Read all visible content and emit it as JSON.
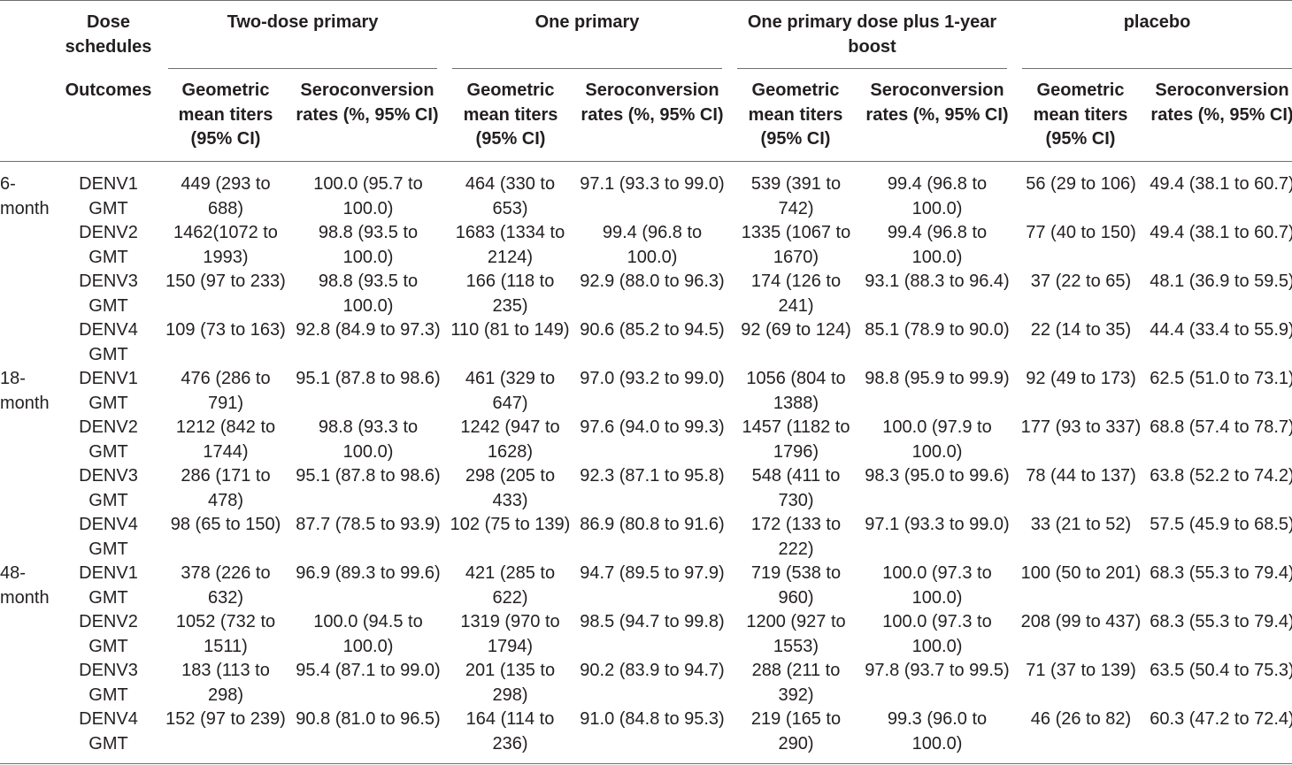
{
  "header": {
    "dose_schedules": "Dose schedules",
    "outcomes": "Outcomes",
    "groups": [
      "Two-dose primary",
      "One primary",
      "One primary dose plus 1-year boost",
      "placebo"
    ],
    "gmt_label": "Geometric mean titers (95% CI)",
    "sc_label": "Seroconversion rates (%, 95% CI)"
  },
  "sections": [
    {
      "label": "6-month",
      "rows": [
        {
          "outcome": "DENV1 GMT",
          "values": [
            "449 (293 to 688)",
            "100.0 (95.7 to 100.0)",
            "464 (330 to 653)",
            "97.1 (93.3 to 99.0)",
            "539 (391 to 742)",
            "99.4 (96.8 to 100.0)",
            "56 (29 to 106)",
            "49.4 (38.1 to 60.7)"
          ]
        },
        {
          "outcome": "DENV2 GMT",
          "values": [
            "1462(1072 to 1993)",
            "98.8 (93.5 to 100.0)",
            "1683 (1334 to 2124)",
            "99.4 (96.8 to 100.0)",
            "1335 (1067 to 1670)",
            "99.4 (96.8 to 100.0)",
            "77 (40 to 150)",
            "49.4 (38.1 to 60.7)"
          ]
        },
        {
          "outcome": "DENV3 GMT",
          "values": [
            "150 (97 to 233)",
            "98.8 (93.5 to 100.0)",
            "166 (118 to 235)",
            "92.9 (88.0 to 96.3)",
            "174 (126 to 241)",
            "93.1 (88.3 to 96.4)",
            "37 (22 to 65)",
            "48.1 (36.9 to 59.5)"
          ]
        },
        {
          "outcome": "DENV4 GMT",
          "values": [
            "109 (73 to 163)",
            "92.8 (84.9 to 97.3)",
            "110 (81 to 149)",
            "90.6 (85.2 to 94.5)",
            "92 (69 to 124)",
            "85.1 (78.9 to 90.0)",
            "22 (14 to 35)",
            "44.4 (33.4 to 55.9)"
          ]
        }
      ]
    },
    {
      "label": "18-month",
      "rows": [
        {
          "outcome": "DENV1 GMT",
          "values": [
            "476 (286 to 791)",
            "95.1 (87.8 to 98.6)",
            "461 (329 to 647)",
            "97.0 (93.2 to 99.0)",
            "1056 (804 to 1388)",
            "98.8 (95.9 to 99.9)",
            "92 (49 to 173)",
            "62.5 (51.0 to 73.1)"
          ]
        },
        {
          "outcome": "DENV2 GMT",
          "values": [
            "1212 (842 to 1744)",
            "98.8 (93.3 to 100.0)",
            "1242 (947 to 1628)",
            "97.6 (94.0 to 99.3)",
            "1457 (1182 to 1796)",
            "100.0 (97.9 to 100.0)",
            "177 (93 to 337)",
            "68.8 (57.4 to 78.7)"
          ]
        },
        {
          "outcome": "DENV3 GMT",
          "values": [
            "286 (171 to 478)",
            "95.1 (87.8 to 98.6)",
            "298 (205 to 433)",
            "92.3 (87.1 to 95.8)",
            "548 (411 to 730)",
            "98.3 (95.0 to 99.6)",
            "78 (44 to 137)",
            "63.8 (52.2 to 74.2)"
          ]
        },
        {
          "outcome": "DENV4 GMT",
          "values": [
            "98 (65 to 150)",
            "87.7 (78.5 to 93.9)",
            "102 (75 to 139)",
            "86.9 (80.8 to 91.6)",
            "172 (133 to 222)",
            "97.1 (93.3 to 99.0)",
            "33 (21 to 52)",
            "57.5 (45.9 to 68.5)"
          ]
        }
      ]
    },
    {
      "label": "48-month",
      "rows": [
        {
          "outcome": "DENV1 GMT",
          "values": [
            "378 (226 to 632)",
            "96.9 (89.3 to 99.6)",
            "421 (285 to 622)",
            "94.7 (89.5 to 97.9)",
            "719 (538 to 960)",
            "100.0 (97.3 to 100.0)",
            "100 (50 to 201)",
            "68.3 (55.3 to 79.4)"
          ]
        },
        {
          "outcome": "DENV2 GMT",
          "values": [
            "1052 (732 to 1511)",
            "100.0 (94.5 to 100.0)",
            "1319 (970 to 1794)",
            "98.5 (94.7 to 99.8)",
            "1200 (927 to 1553)",
            "100.0 (97.3 to 100.0)",
            "208 (99 to 437)",
            "68.3 (55.3 to 79.4)"
          ]
        },
        {
          "outcome": "DENV3 GMT",
          "values": [
            "183 (113 to 298)",
            "95.4 (87.1 to 99.0)",
            "201 (135 to 298)",
            "90.2 (83.9 to 94.7)",
            "288 (211 to 392)",
            "97.8 (93.7 to 99.5)",
            "71 (37 to 139)",
            "63.5 (50.4 to 75.3)"
          ]
        },
        {
          "outcome": "DENV4 GMT",
          "values": [
            "152 (97 to 239)",
            "90.8 (81.0 to 96.5)",
            "164 (114 to 236)",
            "91.0 (84.8 to 95.3)",
            "219 (165 to 290)",
            "99.3 (96.0 to 100.0)",
            "46 (26 to 82)",
            "60.3 (47.2 to 72.4)"
          ]
        }
      ]
    }
  ]
}
